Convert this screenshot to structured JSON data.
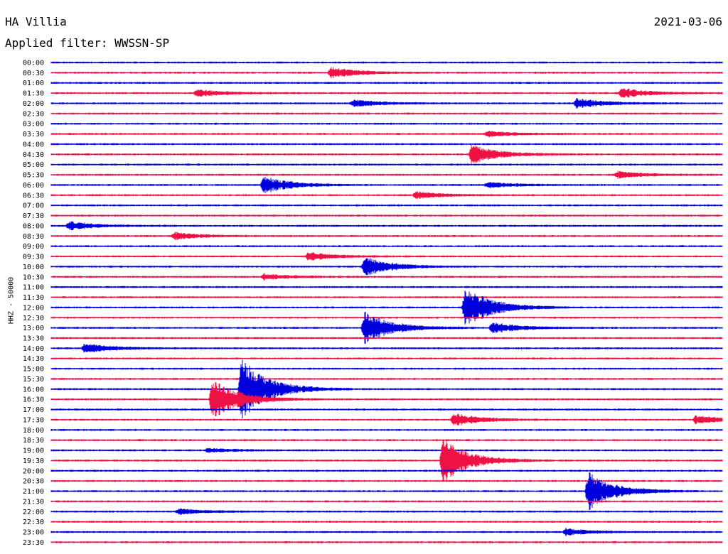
{
  "header": {
    "station": "HA Villia",
    "date": "2021-03-06",
    "filter": "Applied filter: WWSSN-SP"
  },
  "chart_data": {
    "type": "line",
    "title": "HA Villia",
    "date": "2021-03-06",
    "ylabel": "HHZ - 50000",
    "row_colors": [
      "#0000dd",
      "#ee1144"
    ],
    "time_labels": [
      "00:00",
      "00:30",
      "01:00",
      "01:30",
      "02:00",
      "02:30",
      "03:00",
      "03:30",
      "04:00",
      "04:30",
      "05:00",
      "05:30",
      "06:00",
      "06:30",
      "07:00",
      "07:30",
      "08:00",
      "08:30",
      "09:00",
      "09:30",
      "10:00",
      "10:30",
      "11:00",
      "11:30",
      "12:00",
      "12:30",
      "13:00",
      "13:30",
      "14:00",
      "14:30",
      "15:00",
      "15:30",
      "16:00",
      "16:30",
      "17:00",
      "17:30",
      "18:00",
      "18:30",
      "19:00",
      "19:30",
      "20:00",
      "20:30",
      "21:00",
      "21:30",
      "22:00",
      "22:30",
      "23:00",
      "23:30"
    ],
    "row_minutes": 30,
    "events": [
      {
        "row": 1,
        "minute": 12.5,
        "amplitude": 8
      },
      {
        "row": 3,
        "minute": 6.5,
        "amplitude": 5
      },
      {
        "row": 3,
        "minute": 25.5,
        "amplitude": 7
      },
      {
        "row": 4,
        "minute": 13.5,
        "amplitude": 5
      },
      {
        "row": 4,
        "minute": 23.5,
        "amplitude": 7
      },
      {
        "row": 7,
        "minute": 19.5,
        "amplitude": 4
      },
      {
        "row": 9,
        "minute": 18.8,
        "amplitude": 14
      },
      {
        "row": 11,
        "minute": 25.3,
        "amplitude": 5
      },
      {
        "row": 12,
        "minute": 9.5,
        "amplitude": 12
      },
      {
        "row": 12,
        "minute": 19.5,
        "amplitude": 4
      },
      {
        "row": 13,
        "minute": 16.3,
        "amplitude": 5
      },
      {
        "row": 16,
        "minute": 0.8,
        "amplitude": 6
      },
      {
        "row": 17,
        "minute": 5.5,
        "amplitude": 5
      },
      {
        "row": 19,
        "minute": 11.5,
        "amplitude": 6
      },
      {
        "row": 20,
        "minute": 14.0,
        "amplitude": 14
      },
      {
        "row": 21,
        "minute": 9.5,
        "amplitude": 4
      },
      {
        "row": 24,
        "minute": 18.5,
        "amplitude": 30
      },
      {
        "row": 26,
        "minute": 14.0,
        "amplitude": 24
      },
      {
        "row": 26,
        "minute": 19.7,
        "amplitude": 8
      },
      {
        "row": 28,
        "minute": 1.5,
        "amplitude": 7
      },
      {
        "row": 32,
        "minute": 8.5,
        "amplitude": 45
      },
      {
        "row": 33,
        "minute": 7.2,
        "amplitude": 30
      },
      {
        "row": 35,
        "minute": 18.0,
        "amplitude": 9
      },
      {
        "row": 35,
        "minute": 28.8,
        "amplitude": 6
      },
      {
        "row": 38,
        "minute": 7.0,
        "amplitude": 3
      },
      {
        "row": 39,
        "minute": 17.5,
        "amplitude": 34
      },
      {
        "row": 42,
        "minute": 24.0,
        "amplitude": 28
      },
      {
        "row": 44,
        "minute": 5.7,
        "amplitude": 4
      },
      {
        "row": 46,
        "minute": 23.0,
        "amplitude": 5
      }
    ]
  }
}
